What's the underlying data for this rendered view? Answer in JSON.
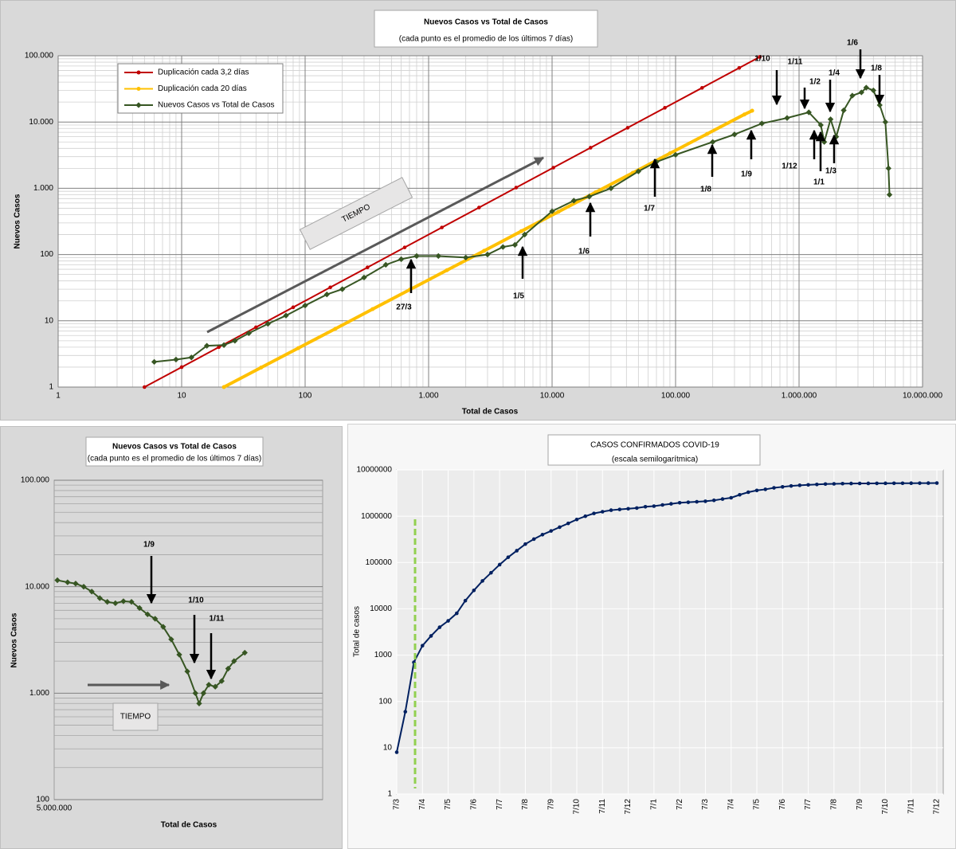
{
  "chart_data": [
    {
      "type": "line",
      "title": "Nuevos Casos vs Total de Casos",
      "subtitle": "(cada punto es el promedio de los últimos 7 días)",
      "xlabel": "Total de Casos",
      "ylabel": "Nuevos Casos",
      "xscale": "log",
      "yscale": "log",
      "xlim": [
        1,
        10000000
      ],
      "xticks": [
        1,
        10,
        100,
        {
          "value": 1000,
          "label": "1.000"
        },
        {
          "value": 10000,
          "label": "10.000"
        },
        {
          "value": 100000,
          "label": "100.000"
        },
        {
          "value": 1000000,
          "label": "1.000.000"
        },
        {
          "value": 10000000,
          "label": "10.000.000"
        }
      ],
      "ylim": [
        1,
        100000
      ],
      "yticks": [
        1,
        10,
        100,
        {
          "value": 1000,
          "label": "1.000"
        },
        {
          "value": 10000,
          "label": "10.000"
        },
        {
          "value": 100000,
          "label": "100.000"
        }
      ],
      "grid": [
        "x",
        "y"
      ],
      "minor_grid": true,
      "legend": "upper left",
      "series": [
        {
          "name": "Duplicación cada 3,2 días",
          "color": "#c00000",
          "marker": "circle",
          "x": [
            5,
            10,
            20,
            40,
            80,
            160,
            320,
            640,
            1280,
            2560,
            5120,
            10240,
            20480,
            40960,
            81920,
            163840,
            327680,
            480000
          ],
          "values": [
            1,
            2,
            4,
            8,
            16,
            32,
            64,
            128,
            256,
            512,
            1024,
            2048,
            4096,
            8192,
            16384,
            32768,
            65536,
            96000
          ]
        },
        {
          "name": "Duplicación cada 20 días",
          "color": "#ffc000",
          "marker": "circle",
          "x": [
            22,
            44,
            88,
            176,
            352,
            704,
            1408,
            2816,
            5632,
            11264,
            22528,
            45056,
            90112,
            180224,
            360448,
            417000
          ],
          "values": [
            1,
            1.97,
            3.87,
            7.6,
            15,
            29.5,
            58,
            114,
            225,
            442,
            870,
            1710,
            3370,
            6620,
            13000,
            14800
          ]
        },
        {
          "name": "Nuevos Casos vs Total de Casos",
          "color": "#375623",
          "marker": "diamond",
          "x": [
            6,
            9,
            12,
            16,
            22,
            27,
            35,
            50,
            70,
            100,
            150,
            200,
            300,
            450,
            600,
            800,
            1200,
            2000,
            3000,
            4000,
            5000,
            6000,
            10000,
            15000,
            20000,
            30000,
            50000,
            70000,
            100000,
            200000,
            300000,
            500000,
            800000,
            1200000,
            1500000,
            1600000,
            1800000,
            2000000,
            2300000,
            2700000,
            3200000,
            3500000,
            4000000,
            4500000,
            5000000,
            5300000,
            5400000
          ],
          "values": [
            2.4,
            2.6,
            2.8,
            4.2,
            4.3,
            5,
            6.5,
            9,
            12,
            17,
            25,
            30,
            45,
            70,
            85,
            95,
            95,
            90,
            100,
            130,
            140,
            200,
            450,
            650,
            750,
            1000,
            1800,
            2500,
            3200,
            5000,
            6500,
            9500,
            11500,
            14000,
            9000,
            5000,
            11000,
            6000,
            15000,
            25000,
            28000,
            33000,
            30000,
            18000,
            10000,
            2000,
            800
          ]
        }
      ],
      "annotations": [
        "TIEMPO",
        "27/3",
        "1/5",
        "1/6",
        "1/7",
        "1/8",
        "1/9",
        "1/10",
        "1/11",
        "1/12",
        "1/1",
        "1/2",
        "1/3",
        "1/4",
        "1/6",
        "1/8"
      ]
    },
    {
      "type": "line",
      "title": "Nuevos Casos vs Total de Casos",
      "subtitle": "(cada punto es el promedio de los últimos 7 días)",
      "xlabel": "Total de Casos",
      "ylabel": "Nuevos Casos",
      "xscale": "linear",
      "yscale": "log",
      "xlim": [
        5000000,
        5500000
      ],
      "xticks": [
        {
          "value": 5000000,
          "label": "5.000.000"
        }
      ],
      "ylim": [
        100,
        100000
      ],
      "yticks": [
        100,
        {
          "value": 1000,
          "label": "1.000"
        },
        {
          "value": 10000,
          "label": "10.000"
        },
        {
          "value": 100000,
          "label": "100.000"
        }
      ],
      "grid": [
        "y"
      ],
      "minor_grid": true,
      "color": "#375623",
      "marker": "diamond",
      "x": [
        5006000,
        5025000,
        5040000,
        5055000,
        5070000,
        5085000,
        5099000,
        5114000,
        5129000,
        5144000,
        5159000,
        5174000,
        5188000,
        5203000,
        5218000,
        5233000,
        5248000,
        5263000,
        5270000,
        5278000,
        5288000,
        5300000,
        5312000,
        5324000,
        5335000,
        5355000
      ],
      "values": [
        11500,
        11000,
        10700,
        10000,
        9000,
        7800,
        7200,
        7000,
        7300,
        7200,
        6300,
        5500,
        5000,
        4200,
        3200,
        2300,
        1600,
        1000,
        800,
        1000,
        1200,
        1150,
        1300,
        1700,
        2000,
        2400
      ],
      "annotations": [
        "TIEMPO",
        "1/9",
        "1/10",
        "1/11"
      ]
    },
    {
      "type": "line",
      "title": "CASOS CONFIRMADOS COVID-19",
      "subtitle": "(escala semilogarítmica)",
      "ylabel": "Total de casos",
      "yscale": "log",
      "ylim": [
        1,
        10000000
      ],
      "yticks": [
        1,
        10,
        100,
        1000,
        10000,
        100000,
        1000000,
        10000000
      ],
      "grid": [
        "x",
        "y"
      ],
      "color": "#002060",
      "marker": "circle",
      "categories": [
        "7/3",
        null,
        null,
        "7/4",
        null,
        null,
        "7/5",
        null,
        null,
        "7/6",
        null,
        null,
        "7/7",
        null,
        null,
        "7/8",
        null,
        null,
        "7/9",
        null,
        null,
        "7/10",
        null,
        null,
        "7/11",
        null,
        null,
        "7/12",
        null,
        null,
        "7/1",
        null,
        null,
        "7/2",
        null,
        null,
        "7/3",
        null,
        null,
        "7/4",
        null,
        null,
        "7/5",
        null,
        null,
        "7/6",
        null,
        null,
        "7/7",
        null,
        null,
        "7/8",
        null,
        null,
        "7/9",
        null,
        null,
        "7/10",
        null,
        null,
        "7/11",
        null,
        null,
        "7/12"
      ],
      "values": [
        8,
        60,
        700,
        1600,
        2600,
        4000,
        5500,
        8000,
        15000,
        25000,
        40000,
        60000,
        90000,
        130000,
        180000,
        250000,
        320000,
        400000,
        480000,
        580000,
        700000,
        850000,
        1000000,
        1150000,
        1250000,
        1350000,
        1400000,
        1450000,
        1500000,
        1600000,
        1650000,
        1750000,
        1850000,
        1950000,
        2000000,
        2050000,
        2100000,
        2200000,
        2350000,
        2500000,
        2900000,
        3300000,
        3600000,
        3800000,
        4100000,
        4300000,
        4500000,
        4650000,
        4750000,
        4850000,
        4950000,
        5000000,
        5050000,
        5080000,
        5100000,
        5110000,
        5120000,
        5130000,
        5140000,
        5150000,
        5160000,
        5170000,
        5180000,
        5190000
      ]
    }
  ]
}
